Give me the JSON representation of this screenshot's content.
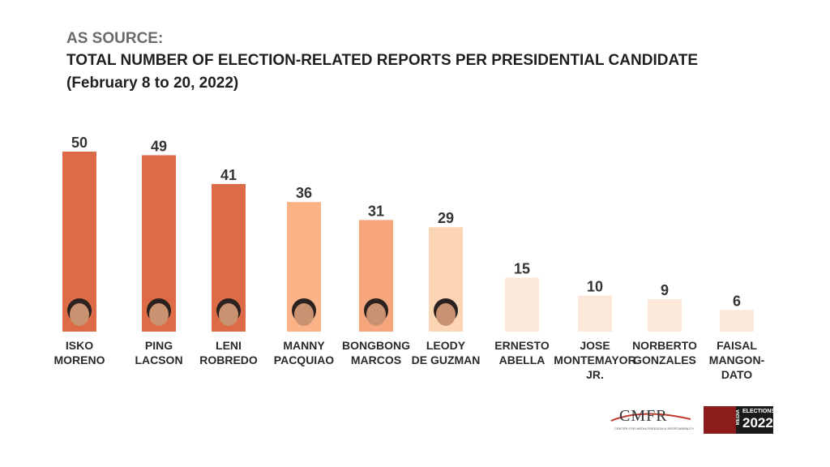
{
  "header": {
    "line1": "AS SOURCE:",
    "line2": "TOTAL NUMBER OF  ELECTION-RELATED REPORTS PER PRESIDENTIAL CANDIDATE",
    "line3": "(February 8 to 20, 2022)"
  },
  "logos": {
    "cmfr": "CMFR",
    "cmfr_sub": "CENTER FOR MEDIA FREEDOM & RESPONSIBILITY",
    "media_label": "MEDIA",
    "elections_label": "ELECTIONS",
    "year_label": "2022"
  },
  "chart_data": {
    "type": "bar",
    "title": "TOTAL NUMBER OF  ELECTION-RELATED REPORTS PER PRESIDENTIAL CANDIDATE",
    "subtitle": "(February 8 to 20, 2022)",
    "xlabel": "",
    "ylabel": "",
    "ylim": [
      0,
      50
    ],
    "grid": false,
    "categories": [
      [
        "ISKO",
        "MORENO"
      ],
      [
        "PING",
        "LACSON"
      ],
      [
        "LENI",
        "ROBREDO"
      ],
      [
        "MANNY",
        "PACQUIAO"
      ],
      [
        "BONGBONG",
        "MARCOS"
      ],
      [
        "LEODY",
        "DE GUZMAN"
      ],
      [
        "ERNESTO",
        "ABELLA"
      ],
      [
        "JOSE",
        "MONTEMAYOR",
        "JR."
      ],
      [
        "NORBERTO",
        "GONZALES"
      ],
      [
        "FAISAL",
        "MANGON-",
        "DATO"
      ]
    ],
    "values": [
      50,
      49,
      41,
      36,
      31,
      29,
      15,
      10,
      9,
      6
    ],
    "colors": [
      "#DD6B47",
      "#DD6B47",
      "#DD6B47",
      "#FBB286",
      "#F7A57C",
      "#FCD6B4",
      "#FCE8DA",
      "#FCE8DA",
      "#FCE8DA",
      "#FCE8DA"
    ],
    "has_photo": [
      true,
      true,
      true,
      true,
      true,
      true,
      false,
      false,
      false,
      false
    ]
  }
}
